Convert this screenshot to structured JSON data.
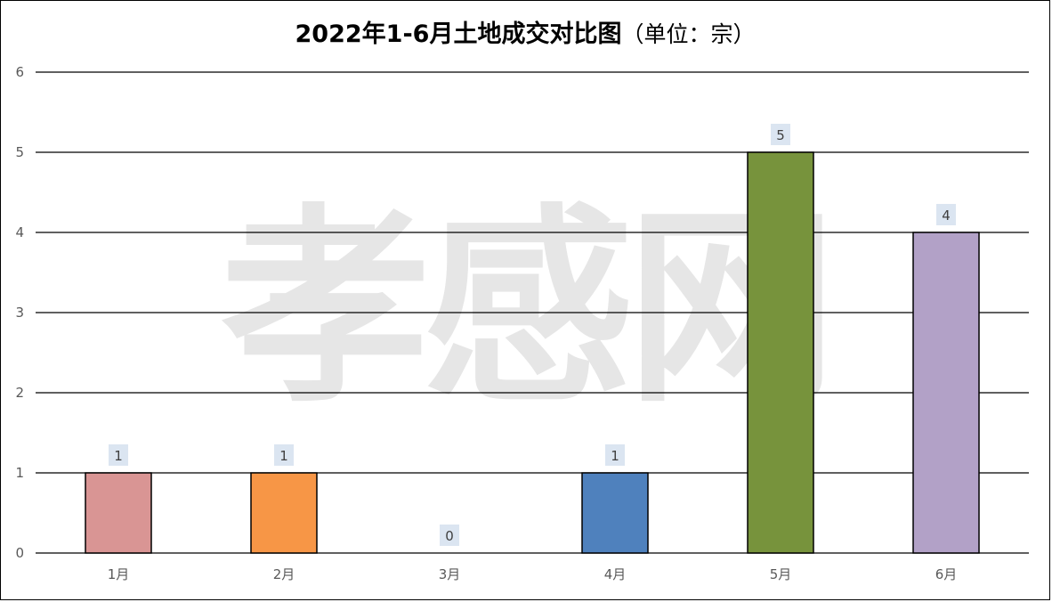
{
  "chart_data": {
    "type": "bar",
    "title": "2022年1-6月土地成交对比图",
    "subtitle": "（单位：宗）",
    "categories": [
      "1月",
      "2月",
      "3月",
      "4月",
      "5月",
      "6月"
    ],
    "values": [
      1,
      1,
      0,
      1,
      5,
      4
    ],
    "colors": [
      "#d99594",
      "#f79646",
      "#a5a5a5",
      "#4f81bd",
      "#77933c",
      "#b2a1c7"
    ],
    "ylim": [
      0,
      6
    ],
    "yticks": [
      0,
      1,
      2,
      3,
      4,
      5,
      6
    ],
    "grid": true,
    "legend": "none",
    "data_labels": true
  },
  "watermark": {
    "text": "孝感网",
    "color": "#e6e6e6"
  }
}
